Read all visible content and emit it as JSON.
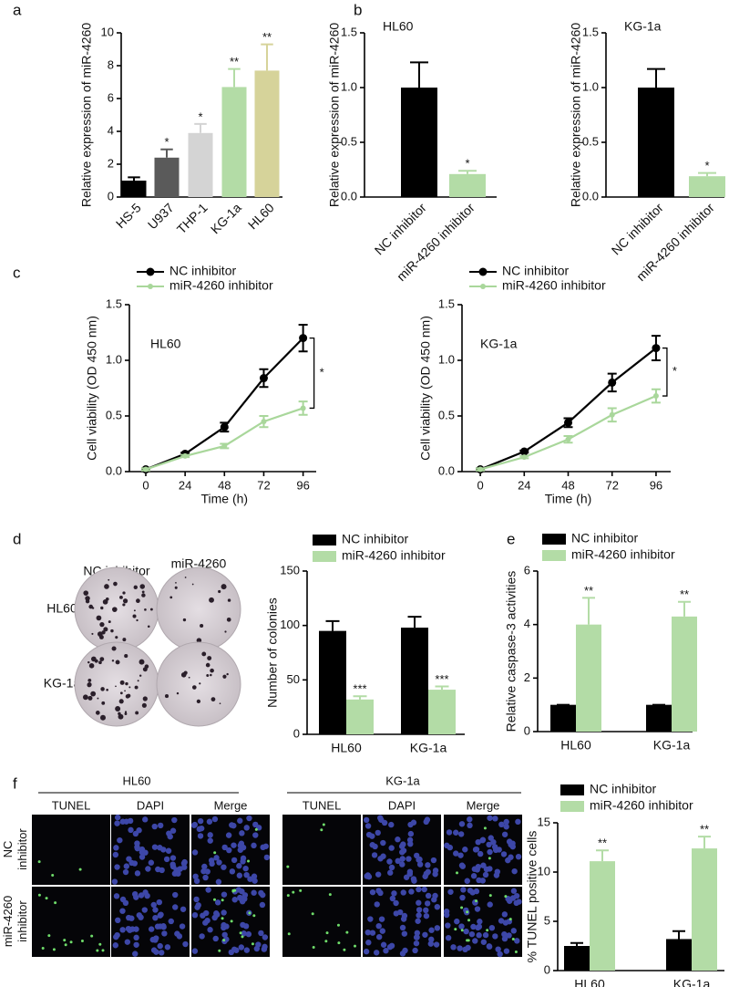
{
  "panel_labels": [
    "a",
    "b",
    "c",
    "d",
    "e",
    "f"
  ],
  "colony_assay": {
    "columns": [
      "NC inhibitor",
      "miR-4260 inhibitor"
    ],
    "rows": [
      "HL60",
      "KG-1a"
    ]
  },
  "microscopy": {
    "groups": [
      "HL60",
      "KG-1a"
    ],
    "channels": [
      "TUNEL",
      "DAPI",
      "Merge"
    ],
    "rows": [
      "NC inhibitor",
      "miR-4260 inhibitor"
    ]
  },
  "chart_data": [
    {
      "type": "bar",
      "ylabel": "Relative expression of miR-4260",
      "categories": [
        "HS-5",
        "U937",
        "THP-1",
        "KG-1a",
        "HL60"
      ],
      "values": [
        1.0,
        2.4,
        3.9,
        6.7,
        7.7
      ],
      "errors": [
        0.2,
        0.5,
        0.55,
        1.1,
        1.6
      ],
      "colors": [
        "#000000",
        "#5a5a5a",
        "#d4d4d4",
        "#b3dca6",
        "#d6d39a"
      ],
      "annotations": [
        null,
        "*",
        "*",
        "**",
        "**"
      ],
      "ylim": [
        0,
        10
      ],
      "yticks": [
        0,
        2,
        4,
        6,
        8,
        10
      ]
    },
    {
      "type": "bar",
      "title": "HL60",
      "ylabel": "Relative expression of miR-4260",
      "categories": [
        "NC inhibitor",
        "miR-4260 inhibitor"
      ],
      "values": [
        1.0,
        0.21
      ],
      "errors": [
        0.23,
        0.03
      ],
      "colors": [
        "#000000",
        "#b3dca6"
      ],
      "annotations": [
        null,
        "*"
      ],
      "ylim": [
        0,
        1.5
      ],
      "yticks": [
        {
          "value": 0,
          "label": "0.0"
        },
        0.5,
        {
          "value": 1,
          "label": "1.0"
        },
        1.5
      ]
    },
    {
      "type": "bar",
      "title": "KG-1a",
      "ylabel": "Relative expression of miR-4260",
      "categories": [
        "NC inhibitor",
        "miR-4260 inhibitor"
      ],
      "values": [
        1.0,
        0.19
      ],
      "errors": [
        0.17,
        0.03
      ],
      "colors": [
        "#000000",
        "#b3dca6"
      ],
      "annotations": [
        null,
        "*"
      ],
      "ylim": [
        0,
        1.5
      ],
      "yticks": [
        {
          "value": 0,
          "label": "0.0"
        },
        0.5,
        {
          "value": 1,
          "label": "1.0"
        },
        1.5
      ]
    },
    {
      "type": "line",
      "title": "HL60",
      "xlabel": "Time (h)",
      "ylabel": "Cell viability (OD 450 nm)",
      "x": [
        0,
        24,
        48,
        72,
        96
      ],
      "series": [
        {
          "name": "NC inhibitor",
          "color": "#000000",
          "values": [
            0.02,
            0.16,
            0.4,
            0.84,
            1.2
          ],
          "errors": [
            0.01,
            0.01,
            0.04,
            0.08,
            0.12
          ]
        },
        {
          "name": "miR-4260 inhibitor",
          "color": "#a9d79b",
          "values": [
            0.02,
            0.14,
            0.23,
            0.45,
            0.57
          ],
          "errors": [
            0.01,
            0.01,
            0.02,
            0.05,
            0.06
          ]
        }
      ],
      "annotation": "*",
      "xlim": [
        -10,
        104
      ],
      "xticks": [
        0,
        24,
        48,
        72,
        96
      ],
      "ylim": [
        0,
        1.5
      ],
      "yticks": [
        {
          "value": 0,
          "label": "0.0"
        },
        0.5,
        {
          "value": 1,
          "label": "1.0"
        },
        1.5
      ]
    },
    {
      "type": "line",
      "title": "KG-1a",
      "xlabel": "Time (h)",
      "ylabel": "Cell viability (OD 450 nm)",
      "x": [
        0,
        24,
        48,
        72,
        96
      ],
      "series": [
        {
          "name": "NC inhibitor",
          "color": "#000000",
          "values": [
            0.02,
            0.18,
            0.44,
            0.8,
            1.11
          ],
          "errors": [
            0.01,
            0.01,
            0.04,
            0.08,
            0.11
          ]
        },
        {
          "name": "miR-4260 inhibitor",
          "color": "#a9d79b",
          "values": [
            0.02,
            0.13,
            0.29,
            0.51,
            0.68
          ],
          "errors": [
            0.01,
            0.01,
            0.03,
            0.06,
            0.06
          ]
        }
      ],
      "annotation": "*",
      "xlim": [
        -10,
        104
      ],
      "xticks": [
        0,
        24,
        48,
        72,
        96
      ],
      "ylim": [
        0,
        1.5
      ],
      "yticks": [
        {
          "value": 0,
          "label": "0.0"
        },
        0.5,
        {
          "value": 1,
          "label": "1.0"
        },
        1.5
      ]
    },
    {
      "type": "bar",
      "ylabel": "Number of colonies",
      "categories": [
        "HL60",
        "KG-1a"
      ],
      "series": [
        {
          "name": "NC inhibitor",
          "color": "#000000",
          "values": [
            95,
            98
          ],
          "errors": [
            9,
            10
          ],
          "annotations": [
            null,
            null
          ]
        },
        {
          "name": "miR-4260 inhibitor",
          "color": "#b3dca6",
          "values": [
            32,
            41
          ],
          "errors": [
            3,
            3
          ],
          "annotations": [
            "***",
            "***"
          ]
        }
      ],
      "ylim": [
        0,
        150
      ],
      "yticks": [
        0,
        50,
        100,
        150
      ]
    },
    {
      "type": "bar",
      "ylabel": "Relative caspase-3 activities",
      "categories": [
        "HL60",
        "KG-1a"
      ],
      "series": [
        {
          "name": "NC inhibitor",
          "color": "#000000",
          "values": [
            1.0,
            1.0
          ],
          "errors": [
            0,
            0
          ],
          "annotations": [
            null,
            null
          ]
        },
        {
          "name": "miR-4260 inhibitor",
          "color": "#b3dca6",
          "values": [
            4.0,
            4.3
          ],
          "errors": [
            1.0,
            0.55
          ],
          "annotations": [
            "**",
            "**"
          ]
        }
      ],
      "ylim": [
        0,
        6
      ],
      "yticks": [
        0,
        2,
        4,
        6
      ]
    },
    {
      "type": "bar",
      "ylabel": "% TUNEL positive cells",
      "categories": [
        "HL60",
        "KG-1a"
      ],
      "series": [
        {
          "name": "NC inhibitor",
          "color": "#000000",
          "values": [
            2.5,
            3.2
          ],
          "errors": [
            0.3,
            0.8
          ],
          "annotations": [
            null,
            null
          ]
        },
        {
          "name": "miR-4260 inhibitor",
          "color": "#b3dca6",
          "values": [
            11.1,
            12.4
          ],
          "errors": [
            1.1,
            1.2
          ],
          "annotations": [
            "**",
            "**"
          ]
        }
      ],
      "ylim": [
        0,
        15
      ],
      "yticks": [
        0,
        5,
        10,
        15
      ]
    }
  ]
}
